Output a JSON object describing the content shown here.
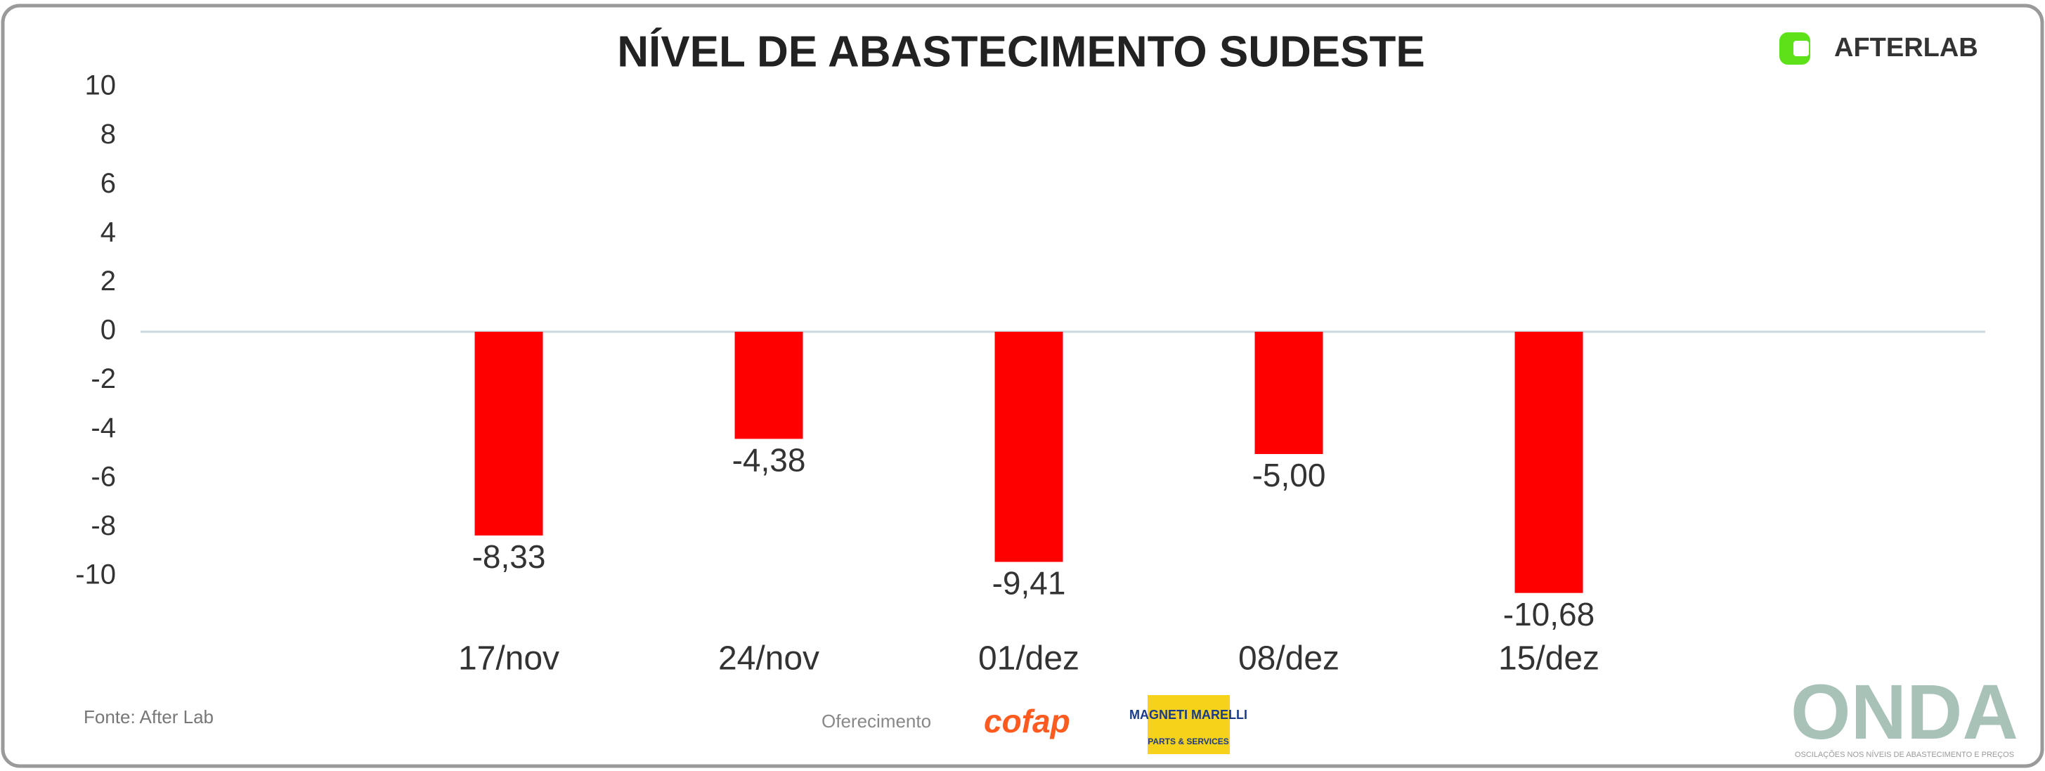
{
  "chart_data": {
    "type": "bar",
    "title": "NÍVEL DE ABASTECIMENTO SUDESTE",
    "categories": [
      "17/nov",
      "24/nov",
      "01/dez",
      "08/dez",
      "15/dez"
    ],
    "values": [
      -8.33,
      -4.38,
      -9.41,
      -5.0,
      -10.68
    ],
    "value_labels": [
      "-8,33",
      "-4,38",
      "-9,41",
      "-5,00",
      "-10,68"
    ],
    "color": "#ff0000",
    "ylim": [
      -10,
      10
    ],
    "yticks": [
      -10,
      -8,
      -6,
      -4,
      -2,
      0,
      2,
      4,
      6,
      8,
      10
    ],
    "grid": false
  },
  "branding": {
    "logo": "AFTERLAB",
    "source": "Fonte: After Lab",
    "sponsor_label": "Oferecimento",
    "sponsor_1": "cofap",
    "sponsor_2": "MAGNETI MARELLI",
    "sponsor_2_sub": "PARTS & SERVICES",
    "brand": "ONDA",
    "brand_sub": "OSCILAÇÕES NOS NÍVEIS DE ABASTECIMENTO E PREÇOS"
  }
}
